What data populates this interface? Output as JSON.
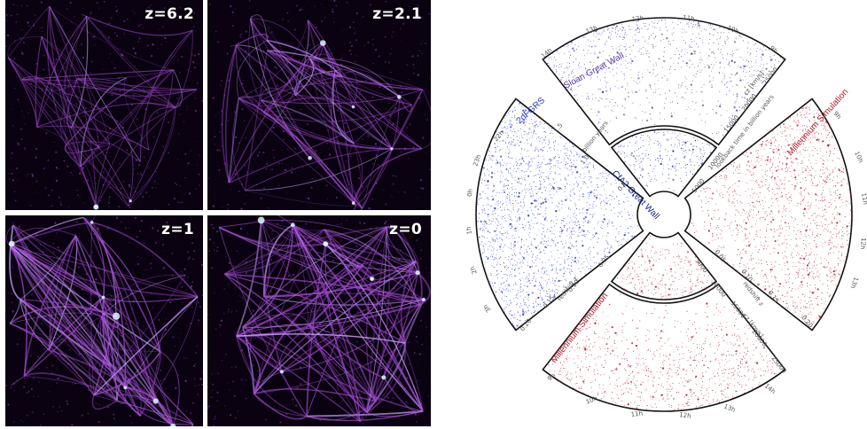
{
  "panels": [
    {
      "id": "p1",
      "label": "z=6.2",
      "density": 0.55
    },
    {
      "id": "p2",
      "label": "z=2.1",
      "density": 0.75
    },
    {
      "id": "p3",
      "label": "z=1",
      "density": 0.9
    },
    {
      "id": "p4",
      "label": "z=0",
      "density": 1.0
    }
  ],
  "cone": {
    "sloan": {
      "label": "Sloan Great Wall",
      "ra_ticks": [
        "14h",
        "13h",
        "12h",
        "11h",
        "10h",
        "9h"
      ],
      "cz_ticks": [
        "15000",
        "20000",
        "25000"
      ],
      "cz_unit": "cz [km/s]",
      "color": "#4b3a8f"
    },
    "cfa2": {
      "label": "CfA2 Great Wall",
      "ticks": [
        "5000",
        "10000"
      ],
      "lookback": "lookback time in billion years",
      "lookback_ticks": [
        "0.5",
        "1.0",
        "1.5"
      ],
      "color": "#1a2a8a"
    },
    "twodf": {
      "label": "2dFGRS",
      "ra_ticks": [
        "22h",
        "23h",
        "0h",
        "1h",
        "2h",
        "3h"
      ],
      "z_ticks": [
        "0.05",
        "0.10",
        "0.15",
        "0.20"
      ],
      "lookback_ticks": [
        "0.5",
        "1.0",
        "1.5",
        "2"
      ],
      "lookback": "billion years",
      "z_unit": "redshift z",
      "color": "#2233cc"
    },
    "mill_right": {
      "label": "Millennium Simulation",
      "ticks": [
        "9h",
        "10h",
        "11h",
        "12h",
        "13h"
      ],
      "z_ticks": [
        "0.05",
        "0.10",
        "0.15",
        "0.20"
      ],
      "z_unit": "redshift z",
      "color": "#b5182a"
    },
    "mill_bottom": {
      "label": "Millennium Simulation",
      "ra_ticks": [
        "9h",
        "10h",
        "11h",
        "12h",
        "13h",
        "14h"
      ],
      "cz_ticks": [
        "5000",
        "10000",
        "15000",
        "20000",
        "25000"
      ],
      "cz_unit": "cz [km/s]",
      "color": "#b5182a"
    }
  }
}
